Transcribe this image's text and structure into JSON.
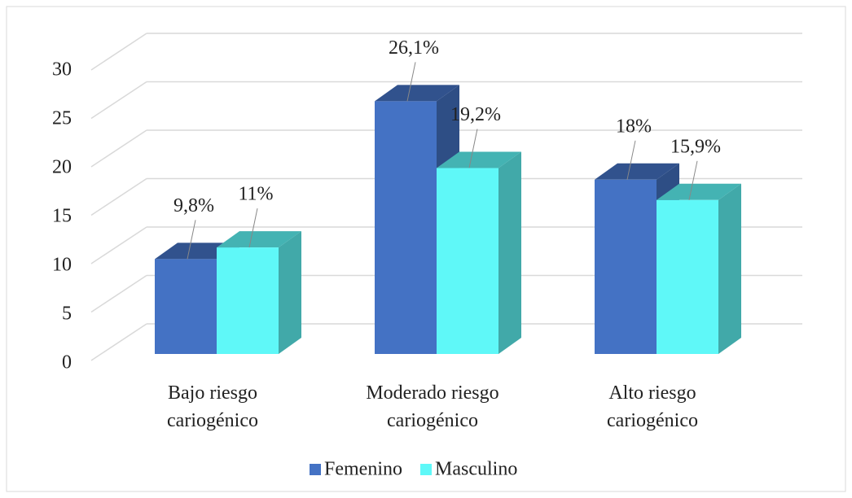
{
  "chart_data": {
    "type": "bar3d",
    "categories": [
      "Bajo riesgo\ncariogénico",
      "Moderado riesgo\ncariogénico",
      "Alto riesgo\ncariogénico"
    ],
    "series": [
      {
        "name": "Femenino",
        "color": "#4472c4",
        "values": [
          9.8,
          26.1,
          18
        ],
        "value_labels": [
          "9,8%",
          "26,1%",
          "18%"
        ]
      },
      {
        "name": "Masculino",
        "color": "#5ff8f8",
        "values": [
          11,
          19.2,
          15.9
        ],
        "value_labels": [
          "11%",
          "19,2%",
          "15,9%"
        ]
      }
    ],
    "ylim": [
      0,
      30
    ],
    "yticks": [
      0,
      5,
      10,
      15,
      20,
      25,
      30
    ],
    "grid": true,
    "legend": "bottom"
  }
}
